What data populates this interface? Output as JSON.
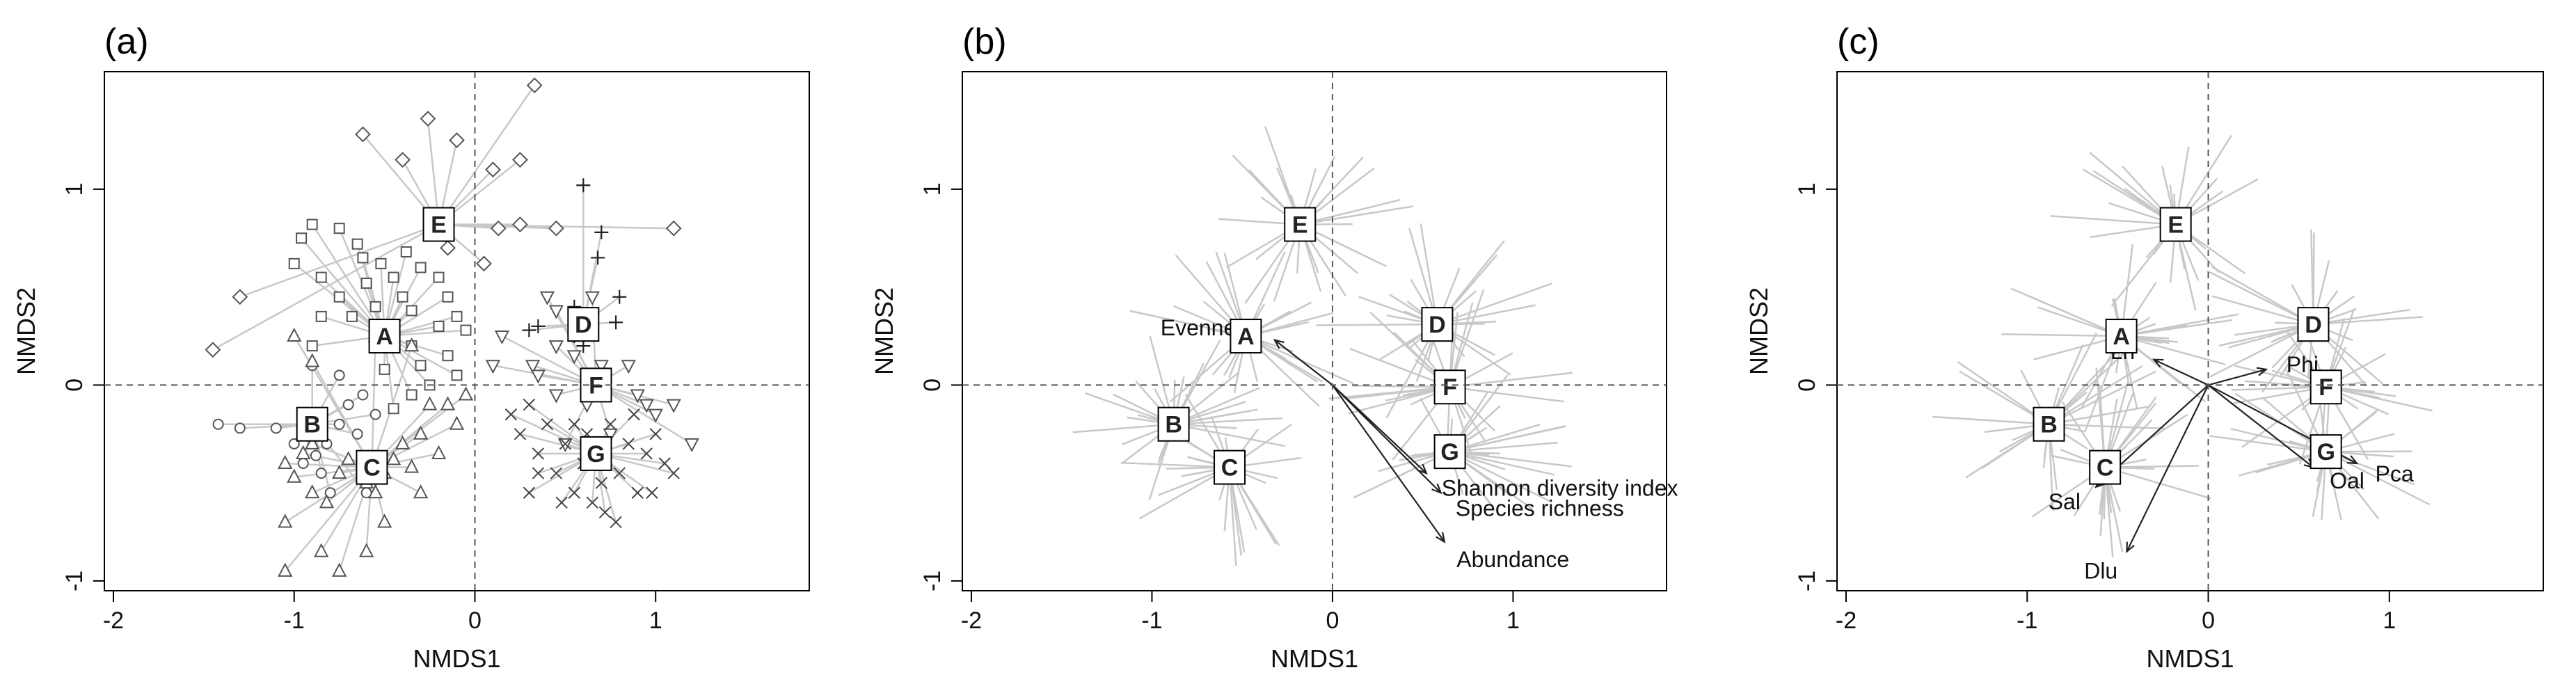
{
  "figure_description_labels": [
    "(a)",
    "(b)",
    "(c)"
  ],
  "colors": {
    "axis": "#000000",
    "spider": "#c8c8c8",
    "point": "#555555",
    "guide": "#555555",
    "arrow": "#222222"
  },
  "chart_data": [
    {
      "type": "scatter",
      "panel_label": "(a)",
      "xlabel": "NMDS1",
      "ylabel": "NMDS2",
      "xlim": [
        -2.05,
        1.85
      ],
      "ylim": [
        -1.05,
        1.6
      ],
      "xticks": [
        "-2",
        "-1",
        "0",
        "1"
      ],
      "yticks": [
        "-1",
        "0",
        "1"
      ],
      "reference_lines": {
        "x": 0,
        "y": 0
      },
      "centroids": [
        {
          "label": "A",
          "x": -0.5,
          "y": 0.25
        },
        {
          "label": "B",
          "x": -0.9,
          "y": -0.2
        },
        {
          "label": "C",
          "x": -0.57,
          "y": -0.42
        },
        {
          "label": "D",
          "x": 0.6,
          "y": 0.31
        },
        {
          "label": "E",
          "x": -0.2,
          "y": 0.82
        },
        {
          "label": "F",
          "x": 0.67,
          "y": 0.0
        },
        {
          "label": "G",
          "x": 0.67,
          "y": -0.35
        }
      ],
      "series": [
        {
          "name": "E",
          "marker": "diamond",
          "points": [
            [
              -1.45,
              0.18
            ],
            [
              -1.3,
              0.45
            ],
            [
              -0.62,
              1.28
            ],
            [
              -0.4,
              1.15
            ],
            [
              -0.26,
              1.36
            ],
            [
              -0.1,
              1.25
            ],
            [
              0.1,
              1.1
            ],
            [
              0.13,
              0.8
            ],
            [
              0.25,
              1.15
            ],
            [
              0.33,
              1.53
            ],
            [
              0.25,
              0.82
            ],
            [
              0.45,
              0.8
            ],
            [
              1.1,
              0.8
            ],
            [
              -0.15,
              0.7
            ],
            [
              0.05,
              0.62
            ]
          ]
        },
        {
          "name": "A",
          "marker": "square",
          "points": [
            [
              -1.0,
              0.62
            ],
            [
              -0.96,
              0.75
            ],
            [
              -0.9,
              0.82
            ],
            [
              -0.75,
              0.8
            ],
            [
              -0.65,
              0.72
            ],
            [
              -0.62,
              0.65
            ],
            [
              -0.85,
              0.55
            ],
            [
              -0.75,
              0.45
            ],
            [
              -0.68,
              0.35
            ],
            [
              -0.6,
              0.52
            ],
            [
              -0.55,
              0.4
            ],
            [
              -0.45,
              0.55
            ],
            [
              -0.4,
              0.45
            ],
            [
              -0.35,
              0.38
            ],
            [
              -0.3,
              0.6
            ],
            [
              -0.2,
              0.55
            ],
            [
              -0.15,
              0.45
            ],
            [
              -0.1,
              0.35
            ],
            [
              -0.05,
              0.28
            ],
            [
              -0.2,
              0.3
            ],
            [
              -0.35,
              0.2
            ],
            [
              -0.3,
              0.1
            ],
            [
              -0.15,
              0.15
            ],
            [
              -0.1,
              0.05
            ],
            [
              -0.25,
              0.0
            ],
            [
              -0.5,
              0.08
            ],
            [
              -0.45,
              -0.12
            ],
            [
              -0.35,
              -0.05
            ],
            [
              -0.85,
              0.35
            ],
            [
              -0.9,
              0.2
            ],
            [
              -0.38,
              0.68
            ],
            [
              -0.52,
              0.62
            ]
          ]
        },
        {
          "name": "B",
          "marker": "circle",
          "points": [
            [
              -1.42,
              -0.2
            ],
            [
              -1.3,
              -0.22
            ],
            [
              -1.1,
              -0.22
            ],
            [
              -1.0,
              -0.3
            ],
            [
              -0.95,
              -0.4
            ],
            [
              -0.88,
              -0.36
            ],
            [
              -0.82,
              -0.3
            ],
            [
              -0.85,
              -0.45
            ],
            [
              -0.75,
              -0.2
            ],
            [
              -0.7,
              -0.1
            ],
            [
              -0.8,
              -0.55
            ],
            [
              -0.65,
              -0.25
            ],
            [
              -0.55,
              -0.15
            ],
            [
              -0.62,
              -0.05
            ],
            [
              -0.9,
              0.1
            ],
            [
              -0.75,
              0.05
            ],
            [
              -0.6,
              -0.55
            ]
          ]
        },
        {
          "name": "C",
          "marker": "triangle",
          "points": [
            [
              -1.0,
              0.25
            ],
            [
              -0.9,
              0.12
            ],
            [
              -0.55,
              0.25
            ],
            [
              -0.35,
              0.2
            ],
            [
              -1.05,
              -0.4
            ],
            [
              -1.0,
              -0.47
            ],
            [
              -0.95,
              -0.35
            ],
            [
              -0.9,
              -0.55
            ],
            [
              -0.82,
              -0.6
            ],
            [
              -0.75,
              -0.45
            ],
            [
              -0.7,
              -0.38
            ],
            [
              -0.6,
              -0.5
            ],
            [
              -0.55,
              -0.55
            ],
            [
              -0.5,
              -0.45
            ],
            [
              -0.45,
              -0.38
            ],
            [
              -0.4,
              -0.3
            ],
            [
              -0.35,
              -0.42
            ],
            [
              -0.3,
              -0.25
            ],
            [
              -0.2,
              -0.35
            ],
            [
              -0.15,
              -0.1
            ],
            [
              -0.1,
              -0.2
            ],
            [
              -0.05,
              -0.05
            ],
            [
              -1.05,
              -0.7
            ],
            [
              -0.85,
              -0.85
            ],
            [
              -0.75,
              -0.95
            ],
            [
              -0.6,
              -0.85
            ],
            [
              -0.5,
              -0.7
            ],
            [
              -1.05,
              -0.95
            ],
            [
              -0.9,
              -0.3
            ],
            [
              -0.3,
              -0.55
            ],
            [
              -0.25,
              -0.1
            ]
          ]
        },
        {
          "name": "D",
          "marker": "plus",
          "points": [
            [
              0.3,
              0.28
            ],
            [
              0.35,
              0.3
            ],
            [
              0.55,
              0.4
            ],
            [
              0.68,
              0.65
            ],
            [
              0.7,
              0.78
            ],
            [
              0.78,
              0.32
            ],
            [
              0.8,
              0.45
            ],
            [
              0.55,
              0.25
            ],
            [
              0.6,
              1.02
            ],
            [
              0.6,
              0.2
            ]
          ]
        },
        {
          "name": "F",
          "marker": "triangle-down",
          "points": [
            [
              0.15,
              0.25
            ],
            [
              0.32,
              0.1
            ],
            [
              0.45,
              0.2
            ],
            [
              0.45,
              -0.05
            ],
            [
              0.55,
              0.15
            ],
            [
              0.62,
              -0.1
            ],
            [
              0.7,
              0.1
            ],
            [
              0.85,
              0.1
            ],
            [
              0.9,
              -0.05
            ],
            [
              0.95,
              -0.1
            ],
            [
              1.0,
              -0.15
            ],
            [
              1.1,
              -0.1
            ],
            [
              1.2,
              -0.3
            ],
            [
              0.75,
              -0.25
            ],
            [
              0.5,
              -0.3
            ],
            [
              0.35,
              0.05
            ],
            [
              0.1,
              0.1
            ],
            [
              0.45,
              0.38
            ],
            [
              0.65,
              0.45
            ],
            [
              0.4,
              0.45
            ]
          ]
        },
        {
          "name": "G",
          "marker": "cross",
          "points": [
            [
              0.2,
              -0.15
            ],
            [
              0.25,
              -0.25
            ],
            [
              0.3,
              -0.1
            ],
            [
              0.35,
              -0.35
            ],
            [
              0.4,
              -0.2
            ],
            [
              0.45,
              -0.45
            ],
            [
              0.5,
              -0.3
            ],
            [
              0.55,
              -0.55
            ],
            [
              0.6,
              -0.4
            ],
            [
              0.65,
              -0.6
            ],
            [
              0.7,
              -0.5
            ],
            [
              0.75,
              -0.2
            ],
            [
              0.8,
              -0.45
            ],
            [
              0.85,
              -0.3
            ],
            [
              0.9,
              -0.55
            ],
            [
              0.95,
              -0.35
            ],
            [
              1.0,
              -0.25
            ],
            [
              1.05,
              -0.4
            ],
            [
              1.1,
              -0.45
            ],
            [
              0.35,
              -0.45
            ],
            [
              0.48,
              -0.6
            ],
            [
              0.62,
              -0.25
            ],
            [
              0.78,
              -0.7
            ],
            [
              0.88,
              -0.15
            ],
            [
              0.98,
              -0.55
            ],
            [
              0.3,
              -0.55
            ],
            [
              0.55,
              -0.2
            ],
            [
              0.72,
              -0.65
            ]
          ]
        }
      ]
    },
    {
      "type": "scatter",
      "panel_label": "(b)",
      "xlabel": "NMDS1",
      "ylabel": "NMDS2",
      "xlim": [
        -2.05,
        1.85
      ],
      "ylim": [
        -1.05,
        1.6
      ],
      "xticks": [
        "-2",
        "-1",
        "0",
        "1"
      ],
      "yticks": [
        "-1",
        "0",
        "1"
      ],
      "reference_lines": {
        "x": 0,
        "y": 0
      },
      "centroids": [
        {
          "label": "A",
          "x": -0.48,
          "y": 0.25
        },
        {
          "label": "B",
          "x": -0.88,
          "y": -0.2
        },
        {
          "label": "C",
          "x": -0.57,
          "y": -0.42
        },
        {
          "label": "D",
          "x": 0.58,
          "y": 0.31
        },
        {
          "label": "E",
          "x": -0.18,
          "y": 0.82
        },
        {
          "label": "F",
          "x": 0.65,
          "y": -0.01
        },
        {
          "label": "G",
          "x": 0.65,
          "y": -0.34
        }
      ],
      "vectors": [
        {
          "label": "Evenness",
          "x": -0.32,
          "y": 0.23
        },
        {
          "label": "Shannon diversity index",
          "x": 0.52,
          "y": -0.45
        },
        {
          "label": "Species richness",
          "x": 0.6,
          "y": -0.55
        },
        {
          "label": "Abundance",
          "x": 0.62,
          "y": -0.8
        }
      ]
    },
    {
      "type": "scatter",
      "panel_label": "(c)",
      "xlabel": "NMDS1",
      "ylabel": "NMDS2",
      "xlim": [
        -2.05,
        1.85
      ],
      "ylim": [
        -1.05,
        1.6
      ],
      "xticks": [
        "-2",
        "-1",
        "0",
        "1"
      ],
      "yticks": [
        "-1",
        "0",
        "1"
      ],
      "reference_lines": {
        "x": 0,
        "y": 0
      },
      "centroids": [
        {
          "label": "A",
          "x": -0.48,
          "y": 0.25
        },
        {
          "label": "B",
          "x": -0.88,
          "y": -0.2
        },
        {
          "label": "C",
          "x": -0.57,
          "y": -0.42
        },
        {
          "label": "D",
          "x": 0.58,
          "y": 0.31
        },
        {
          "label": "E",
          "x": -0.18,
          "y": 0.82
        },
        {
          "label": "F",
          "x": 0.65,
          "y": -0.01
        },
        {
          "label": "G",
          "x": 0.65,
          "y": -0.34
        }
      ],
      "vectors": [
        {
          "label": "Lri",
          "x": -0.3,
          "y": 0.13
        },
        {
          "label": "Phi",
          "x": 0.32,
          "y": 0.08
        },
        {
          "label": "Sal",
          "x": -0.62,
          "y": -0.52
        },
        {
          "label": "Dlu",
          "x": -0.45,
          "y": -0.85
        },
        {
          "label": "Oal",
          "x": 0.58,
          "y": -0.42
        },
        {
          "label": "Pca",
          "x": 0.82,
          "y": -0.4
        }
      ]
    }
  ]
}
